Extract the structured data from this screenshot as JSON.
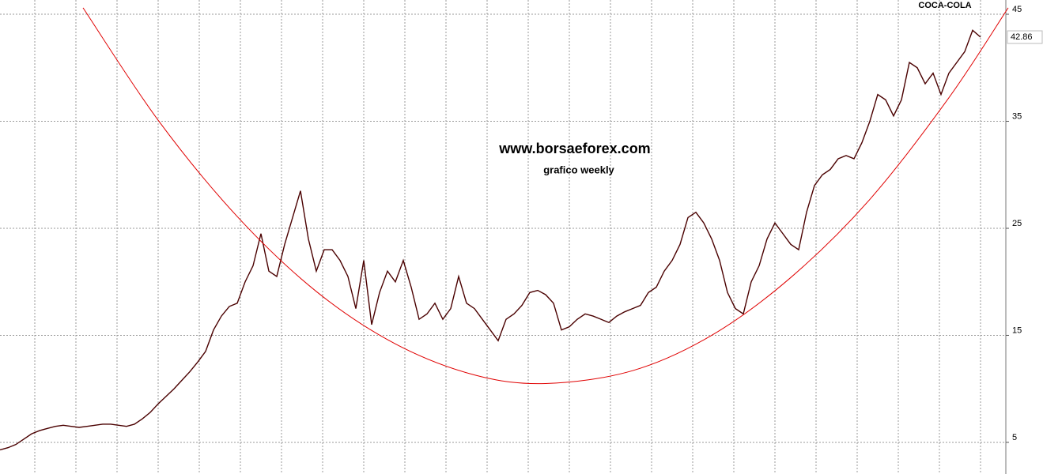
{
  "chart_data": {
    "type": "line",
    "title": "COCA-COLA",
    "annotations": [
      "www.borsaeforex.com",
      "grafico weekly"
    ],
    "annotation_colors": [
      "#1f1fd6",
      "#e01010"
    ],
    "values": [
      4.3,
      4.5,
      4.8,
      5.3,
      5.8,
      6.1,
      6.3,
      6.5,
      6.6,
      6.5,
      6.4,
      6.5,
      6.6,
      6.7,
      6.7,
      6.6,
      6.5,
      6.7,
      7.2,
      7.8,
      8.6,
      9.3,
      10,
      10.8,
      11.6,
      12.5,
      13.5,
      15.5,
      16.8,
      17.7,
      18,
      20,
      21.5,
      24.5,
      21,
      20.5,
      23.5,
      26,
      28.5,
      24,
      21,
      23,
      23,
      22,
      20.5,
      17.5,
      22,
      16,
      19,
      21,
      20,
      22,
      19.5,
      16.5,
      17,
      18,
      16.5,
      17.5,
      20.5,
      18,
      17.5,
      16.5,
      15.5,
      14.5,
      16.5,
      17,
      17.8,
      19,
      19.2,
      18.8,
      18,
      15.5,
      15.8,
      16.5,
      17,
      16.8,
      16.5,
      16.2,
      16.8,
      17.2,
      17.5,
      17.8,
      19,
      19.5,
      21,
      22,
      23.5,
      26,
      26.5,
      25.5,
      24,
      22,
      19,
      17.5,
      17,
      20,
      21.5,
      24,
      25.5,
      24.5,
      23.5,
      23,
      26.5,
      29,
      30,
      30.5,
      31.5,
      31.8,
      31.5,
      33,
      35,
      37.5,
      37,
      35.5,
      37,
      40.5,
      40,
      38.5,
      39.5,
      37.5,
      39.5,
      40.5,
      41.5,
      43.5,
      42.86
    ],
    "color": "#4a0000",
    "last_price": 42.86,
    "trendline": {
      "color": "#e00000",
      "x": [
        10.5,
        20,
        30,
        40,
        50,
        60,
        69,
        80,
        90,
        100,
        110,
        120,
        127.5
      ],
      "values": [
        45.6,
        35.1,
        26.1,
        19.1,
        14.2,
        11.3,
        10.5,
        11.7,
        15.0,
        20.4,
        27.7,
        37.2,
        45.6
      ]
    },
    "xlim": [
      0,
      127.2
    ],
    "ylim": [
      2.34,
      46.33
    ],
    "yticks": [
      5,
      15,
      25,
      35,
      45
    ],
    "grid": true
  }
}
